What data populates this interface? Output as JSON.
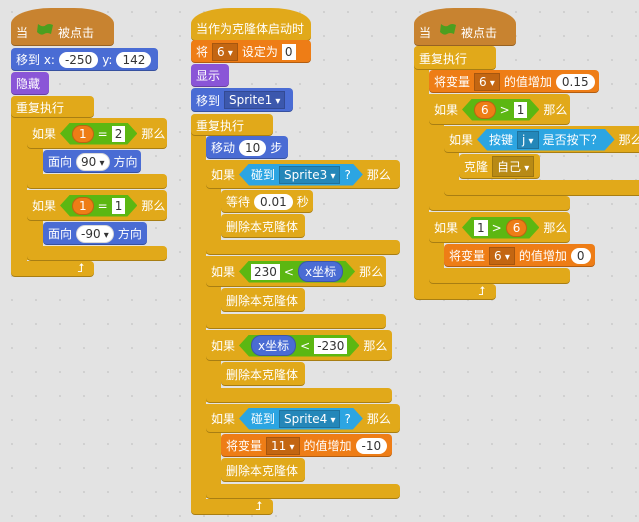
{
  "colors": {
    "events": "#c88330",
    "control": "#e1a91a",
    "motion": "#4a6cd4",
    "looks": "#8a55d7",
    "data": "#ee7d16",
    "operators": "#5cb712",
    "sensing": "#2ca5e2"
  },
  "script1": {
    "hat": {
      "when": "当",
      "icon": "green-flag-icon",
      "clicked": "被点击"
    },
    "goto": {
      "label": "移到 x:",
      "x": "-250",
      "ylabel": "y:",
      "y": "142"
    },
    "hide": "隐藏",
    "forever": "重复执行",
    "if1": {
      "if": "如果",
      "a": "1",
      "op": "=",
      "b": "2",
      "then": "那么",
      "face": "面向",
      "dir": "90",
      "dirlabel": "方向"
    },
    "if2": {
      "if": "如果",
      "a": "1",
      "op": "=",
      "b": "1",
      "then": "那么",
      "face": "面向",
      "dir": "-90",
      "dirlabel": "方向"
    }
  },
  "script2": {
    "hat": "当作为克隆体启动时",
    "set": {
      "label": "将",
      "var": "6",
      "to": "设定为",
      "value": "0"
    },
    "show": "显示",
    "goto": {
      "label": "移到",
      "target": "Sprite1"
    },
    "forever": "重复执行",
    "move": {
      "label": "移动",
      "steps": "10",
      "unit": "步"
    },
    "if1": {
      "if": "如果",
      "touch": "碰到",
      "target": "Sprite3",
      "q": "?",
      "then": "那么",
      "wait": "等待",
      "secs": "0.01",
      "sec": "秒",
      "del": "删除本克隆体"
    },
    "if2": {
      "if": "如果",
      "a": "230",
      "op": "<",
      "b": "x坐标",
      "then": "那么",
      "del": "删除本克隆体"
    },
    "if3": {
      "if": "如果",
      "a": "x坐标",
      "op": "<",
      "b": "-230",
      "then": "那么",
      "del": "删除本克隆体"
    },
    "if4": {
      "if": "如果",
      "touch": "碰到",
      "target": "Sprite4",
      "q": "?",
      "then": "那么",
      "chg": "将变量",
      "var": "11",
      "by": "的值增加",
      "val": "-10",
      "del": "删除本克隆体"
    }
  },
  "script3": {
    "hat": {
      "when": "当",
      "icon": "green-flag-icon",
      "clicked": "被点击"
    },
    "forever": "重复执行",
    "chg": {
      "label": "将变量",
      "var": "6",
      "by": "的值增加",
      "val": "0.15"
    },
    "if1": {
      "if": "如果",
      "a": "6",
      "op": ">",
      "b": "1",
      "then": "那么",
      "inner": {
        "if": "如果",
        "key": "按键",
        "k": "j",
        "pressed": "是否按下？",
        "then": "那么",
        "clone": "克隆",
        "self": "自己"
      }
    },
    "if2": {
      "if": "如果",
      "a": "1",
      "op": ">",
      "b": "6",
      "then": "那么",
      "chg": "将变量",
      "var": "6",
      "by": "的值增加",
      "val": "0"
    }
  }
}
